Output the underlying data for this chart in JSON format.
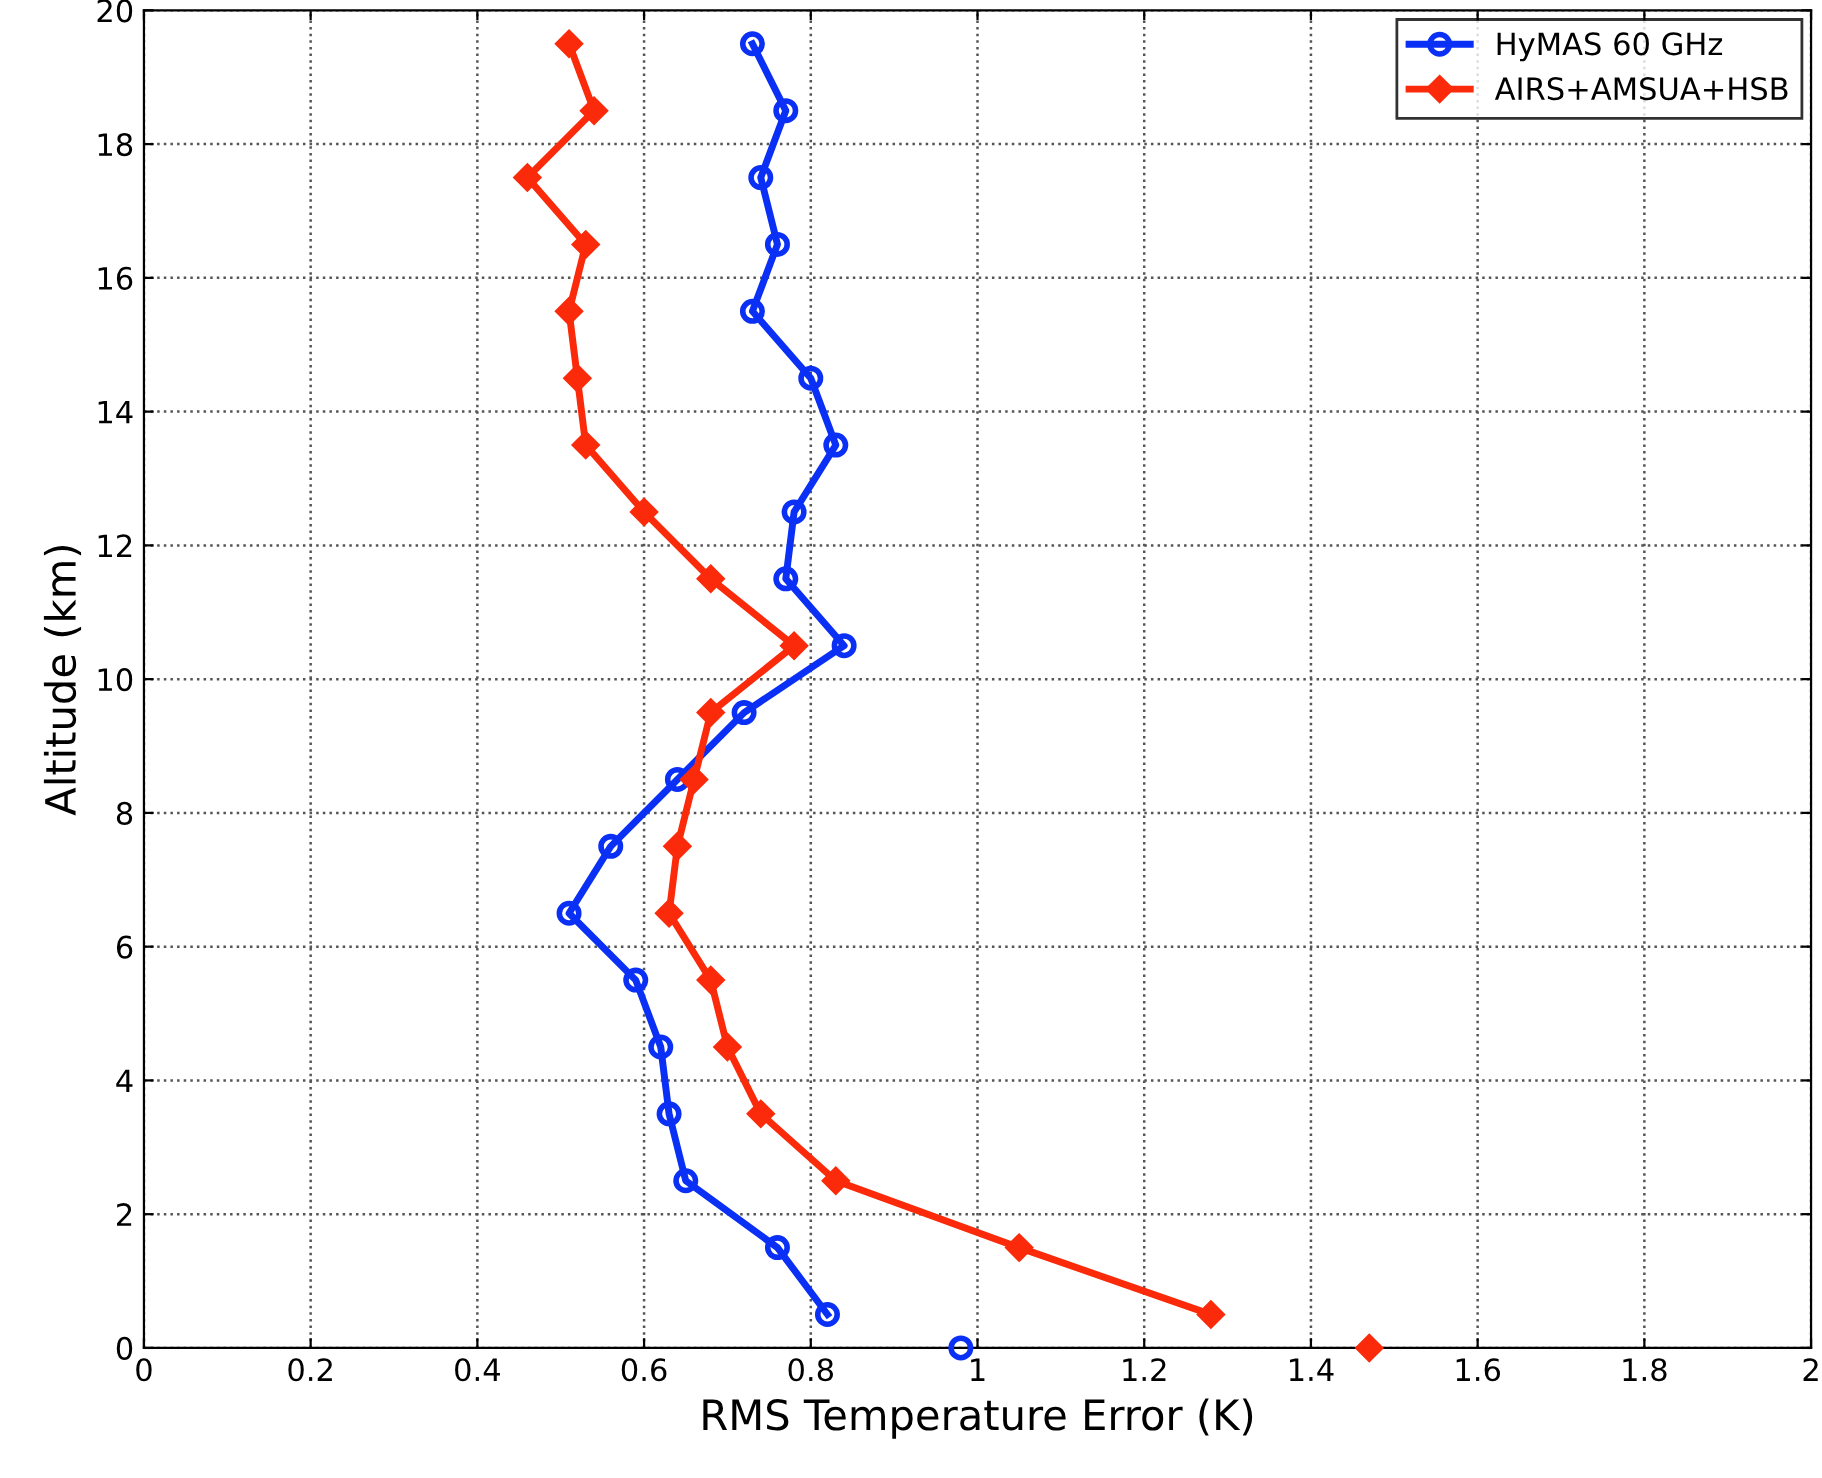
{
  "chart_data": {
    "type": "line",
    "xlabel": "RMS Temperature Error (K)",
    "ylabel": "Altitude (km)",
    "xlim": [
      0,
      2
    ],
    "xticks": [
      0,
      0.2,
      0.4,
      0.6,
      0.8,
      1,
      1.2,
      1.4,
      1.6,
      1.8,
      2
    ],
    "ylim": [
      0,
      20
    ],
    "yticks": [
      0,
      2,
      4,
      6,
      8,
      10,
      12,
      14,
      16,
      18,
      20
    ],
    "grid": true,
    "legend": "top right",
    "line_style": "solid",
    "series": [
      {
        "name": "HyMAS 60 GHz",
        "color": "#0a2ff5",
        "marker": "circle",
        "x": [
          0.73,
          0.77,
          0.74,
          0.76,
          0.73,
          0.8,
          0.83,
          0.78,
          0.77,
          0.84,
          0.72,
          0.64,
          0.56,
          0.51,
          0.59,
          0.62,
          0.63,
          0.65,
          0.76,
          0.82,
          null,
          0.98
        ],
        "values": [
          19.5,
          18.5,
          17.5,
          16.5,
          15.5,
          14.5,
          13.5,
          12.5,
          11.5,
          10.5,
          9.5,
          8.5,
          7.5,
          6.5,
          5.5,
          4.5,
          3.5,
          2.5,
          1.5,
          0.5,
          null,
          0
        ]
      },
      {
        "name": "AIRS+AMSUA+HSB",
        "color": "#fa2a0a",
        "marker": "diamond",
        "x": [
          0.51,
          0.54,
          0.46,
          0.53,
          0.51,
          0.52,
          0.53,
          0.6,
          0.68,
          0.78,
          0.68,
          0.66,
          0.64,
          0.63,
          0.68,
          0.7,
          0.74,
          0.83,
          1.05,
          1.28,
          null,
          1.47
        ],
        "values": [
          19.5,
          18.5,
          17.5,
          16.5,
          15.5,
          14.5,
          13.5,
          12.5,
          11.5,
          10.5,
          9.5,
          8.5,
          7.5,
          6.5,
          5.5,
          4.5,
          3.5,
          2.5,
          1.5,
          0.5,
          null,
          0
        ]
      }
    ]
  }
}
